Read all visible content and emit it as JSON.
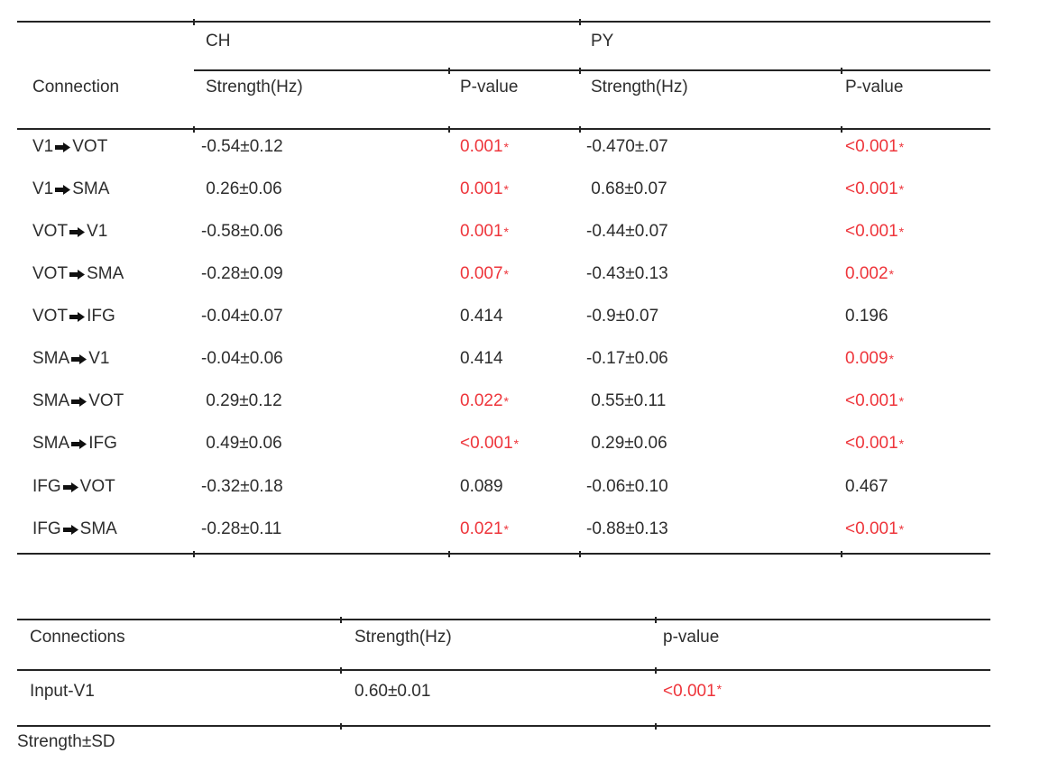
{
  "colors": {
    "text": "#2d2d2d",
    "red": "#ee353b",
    "line": "#242424"
  },
  "table1": {
    "group_headers": {
      "ch": "CH",
      "py": "PY"
    },
    "headers": {
      "connection": "Connection",
      "ch_strength": "Strength(Hz)",
      "ch_pvalue": "P-value",
      "py_strength": "Strength(Hz)",
      "py_pvalue": "P-value"
    },
    "rows": [
      {
        "from": "V1",
        "to": "VOT",
        "ch_strength": "-0.54±0.12",
        "ch_pvalue": "0.001*",
        "py_strength": "-0.470±.07",
        "py_pvalue": "<0.001*"
      },
      {
        "from": "V1",
        "to": "SMA",
        "ch_strength": " 0.26±0.06",
        "ch_pvalue": "0.001*",
        "py_strength": " 0.68±0.07",
        "py_pvalue": "<0.001*"
      },
      {
        "from": "VOT",
        "to": "V1",
        "ch_strength": "-0.58±0.06",
        "ch_pvalue": "0.001*",
        "py_strength": "-0.44±0.07",
        "py_pvalue": "<0.001*"
      },
      {
        "from": "VOT",
        "to": "SMA",
        "ch_strength": "-0.28±0.09",
        "ch_pvalue": "0.007*",
        "py_strength": "-0.43±0.13",
        "py_pvalue": "0.002*"
      },
      {
        "from": "VOT",
        "to": "IFG",
        "ch_strength": "-0.04±0.07",
        "ch_pvalue": "0.414",
        "py_strength": "-0.9±0.07",
        "py_pvalue": "0.196"
      },
      {
        "from": "SMA",
        "to": "V1",
        "ch_strength": "-0.04±0.06",
        "ch_pvalue": "0.414",
        "py_strength": "-0.17±0.06",
        "py_pvalue": "0.009*"
      },
      {
        "from": "SMA",
        "to": "VOT",
        "ch_strength": " 0.29±0.12",
        "ch_pvalue": "0.022*",
        "py_strength": " 0.55±0.11",
        "py_pvalue": "<0.001*"
      },
      {
        "from": "SMA",
        "to": "IFG",
        "ch_strength": " 0.49±0.06",
        "ch_pvalue": "<0.001*",
        "py_strength": " 0.29±0.06",
        "py_pvalue": "<0.001*"
      },
      {
        "from": "IFG",
        "to": "VOT",
        "ch_strength": "-0.32±0.18",
        "ch_pvalue": "0.089",
        "py_strength": "-0.06±0.10",
        "py_pvalue": "0.467"
      },
      {
        "from": "IFG",
        "to": "SMA",
        "ch_strength": "-0.28±0.11",
        "ch_pvalue": "0.021*",
        "py_strength": "-0.88±0.13",
        "py_pvalue": "<0.001*"
      }
    ]
  },
  "table2": {
    "headers": {
      "connections": "Connections",
      "strength": "Strength(Hz)",
      "pvalue": "p-value"
    },
    "rows": [
      {
        "connection": "Input-V1",
        "strength": "0.60±0.01",
        "pvalue": "<0.001*"
      }
    ]
  },
  "footnote": "Strength±SD"
}
